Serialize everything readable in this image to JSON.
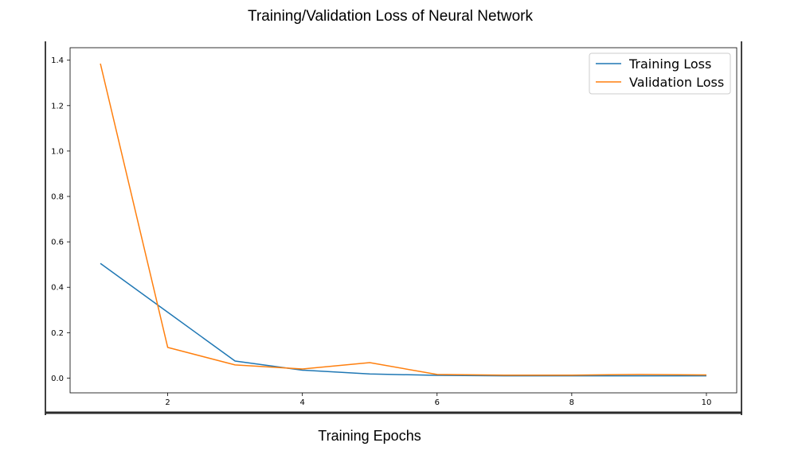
{
  "chart_data": {
    "type": "line",
    "title": "Training/Validation Loss of Neural Network",
    "xlabel": "Training Epochs",
    "ylabel": "",
    "x": [
      1,
      2,
      3,
      4,
      5,
      6,
      7,
      8,
      9,
      10
    ],
    "xlim": [
      0.55,
      10.45
    ],
    "ylim": [
      -0.065,
      1.455
    ],
    "x_ticks": [
      2,
      4,
      6,
      8,
      10
    ],
    "y_ticks": [
      0.0,
      0.2,
      0.4,
      0.6,
      0.8,
      1.0,
      1.2,
      1.4
    ],
    "x_tick_labels": [
      "2",
      "4",
      "6",
      "8",
      "10"
    ],
    "y_tick_labels": [
      "0.0",
      "0.2",
      "0.4",
      "0.6",
      "0.8",
      "1.0",
      "1.2",
      "1.4"
    ],
    "grid": false,
    "legend_position": "top-right",
    "series": [
      {
        "name": "Training Loss",
        "color": "#1f77b4",
        "values": [
          0.505,
          0.29,
          0.075,
          0.035,
          0.018,
          0.012,
          0.01,
          0.01,
          0.01,
          0.01
        ]
      },
      {
        "name": "Validation Loss",
        "color": "#ff7f0e",
        "values": [
          1.385,
          0.135,
          0.058,
          0.04,
          0.068,
          0.016,
          0.013,
          0.013,
          0.016,
          0.014
        ]
      }
    ]
  }
}
